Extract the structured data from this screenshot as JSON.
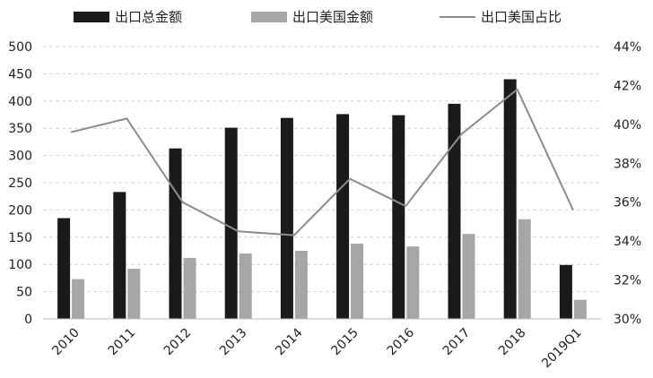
{
  "chart_data": {
    "type": "bar",
    "categories": [
      "2010",
      "2011",
      "2012",
      "2013",
      "2014",
      "2015",
      "2016",
      "2017",
      "2018",
      "2019Q1"
    ],
    "series": [
      {
        "name": "出口总金额",
        "type": "bar",
        "axis": "left",
        "color": "#1a1a1a",
        "values": [
          185,
          233,
          313,
          351,
          369,
          376,
          374,
          395,
          440,
          99
        ]
      },
      {
        "name": "出口美国金额",
        "type": "bar",
        "axis": "left",
        "color": "#a6a6a6",
        "values": [
          73,
          92,
          112,
          120,
          125,
          138,
          133,
          156,
          183,
          35
        ]
      },
      {
        "name": "出口美国占比",
        "type": "line",
        "axis": "right",
        "color": "#8c8c8c",
        "values": [
          39.6,
          40.3,
          36.0,
          34.5,
          34.3,
          37.2,
          35.8,
          39.5,
          41.8,
          35.6
        ]
      }
    ],
    "y_left": {
      "min": 0,
      "max": 500,
      "ticks": [
        0,
        50,
        100,
        150,
        200,
        250,
        300,
        350,
        400,
        450,
        500
      ]
    },
    "y_right": {
      "min": 30,
      "max": 44,
      "ticks": [
        30,
        32,
        34,
        36,
        38,
        40,
        42,
        44
      ],
      "tick_labels": [
        "30%",
        "32%",
        "34%",
        "36%",
        "38%",
        "40%",
        "42%",
        "44%"
      ]
    },
    "grid": "horizontal dashed",
    "legend_position": "top"
  }
}
